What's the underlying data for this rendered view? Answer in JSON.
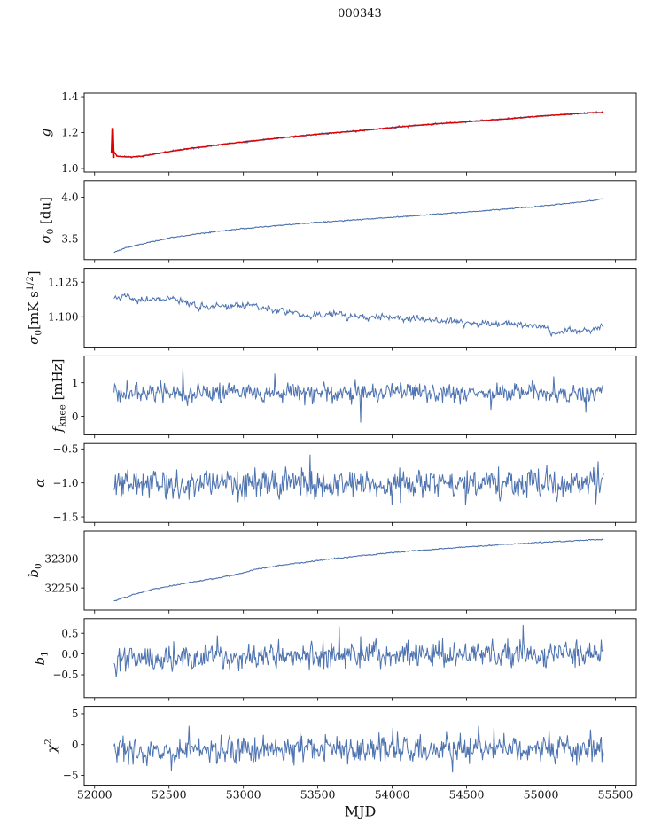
{
  "title": "000343",
  "chart_data": {
    "type": "line",
    "title": "000343",
    "xlabel": "MJD",
    "x": {
      "lim": [
        51930,
        55640
      ],
      "data_range": [
        52130,
        55420
      ],
      "points": 640,
      "ticks": [
        {
          "v": 52000,
          "label": "52000"
        },
        {
          "v": 52500,
          "label": "52500"
        },
        {
          "v": 53000,
          "label": "53000"
        },
        {
          "v": 53500,
          "label": "53500"
        },
        {
          "v": 54000,
          "label": "54000"
        },
        {
          "v": 54500,
          "label": "54500"
        },
        {
          "v": 55000,
          "label": "55000"
        },
        {
          "v": 55500,
          "label": "55500"
        }
      ]
    },
    "colors": {
      "line": "#4c72b0",
      "fit": "#dd0000",
      "axis": "#000000"
    },
    "panels": [
      {
        "id": "g",
        "ylabel_text": "g",
        "ylabel_segments": [
          [
            "g",
            "i"
          ]
        ],
        "ylim": [
          0.98,
          1.42
        ],
        "yticks": [
          {
            "v": 1.0,
            "label": "1.0"
          },
          {
            "v": 1.2,
            "label": "1.2"
          },
          {
            "v": 1.4,
            "label": "1.4"
          }
        ],
        "series": [
          {
            "name": "g",
            "color": "#4c72b0",
            "width": 1.1,
            "sigma": 0.003,
            "smooth": 0.2,
            "trend": [
              [
                52130,
                1.095
              ],
              [
                52150,
                1.068
              ],
              [
                52250,
                1.063
              ],
              [
                52350,
                1.072
              ],
              [
                52500,
                1.094
              ],
              [
                52650,
                1.113
              ],
              [
                52800,
                1.128
              ],
              [
                53000,
                1.148
              ],
              [
                53200,
                1.166
              ],
              [
                53400,
                1.183
              ],
              [
                53600,
                1.198
              ],
              [
                53800,
                1.212
              ],
              [
                54000,
                1.228
              ],
              [
                54200,
                1.242
              ],
              [
                54400,
                1.254
              ],
              [
                54600,
                1.266
              ],
              [
                54800,
                1.278
              ],
              [
                55000,
                1.292
              ],
              [
                55150,
                1.3
              ],
              [
                55300,
                1.308
              ],
              [
                55420,
                1.313
              ]
            ]
          },
          {
            "name": "g-fit",
            "color": "#dd0000",
            "width": 1.4,
            "sigma": 0.0012,
            "smooth": 0.3,
            "pre": [
              [
                52116,
                1.085
              ],
              [
                52121,
                1.225
              ],
              [
                52127,
                1.058
              ]
            ],
            "pre_width": 2.6,
            "trend": [
              [
                52130,
                1.095
              ],
              [
                52150,
                1.068
              ],
              [
                52250,
                1.063
              ],
              [
                52350,
                1.072
              ],
              [
                52500,
                1.094
              ],
              [
                52650,
                1.113
              ],
              [
                52800,
                1.128
              ],
              [
                53000,
                1.148
              ],
              [
                53200,
                1.166
              ],
              [
                53400,
                1.183
              ],
              [
                53600,
                1.198
              ],
              [
                53800,
                1.212
              ],
              [
                54000,
                1.228
              ],
              [
                54200,
                1.242
              ],
              [
                54400,
                1.254
              ],
              [
                54600,
                1.266
              ],
              [
                54800,
                1.278
              ],
              [
                55000,
                1.292
              ],
              [
                55150,
                1.3
              ],
              [
                55300,
                1.308
              ],
              [
                55420,
                1.313
              ]
            ]
          }
        ]
      },
      {
        "id": "sigma0-du",
        "ylabel_text": "σ0 [du]",
        "ylabel_segments": [
          [
            "σ",
            "i"
          ],
          [
            "0",
            "sub"
          ],
          [
            " [du]",
            "n"
          ]
        ],
        "ylim": [
          3.25,
          4.2
        ],
        "yticks": [
          {
            "v": 3.5,
            "label": "3.5"
          },
          {
            "v": 4.0,
            "label": "4.0"
          }
        ],
        "series": [
          {
            "name": "sigma0-du",
            "color": "#4c72b0",
            "width": 1.1,
            "sigma": 0.004,
            "smooth": 0.2,
            "trend": [
              [
                52130,
                3.34
              ],
              [
                52200,
                3.385
              ],
              [
                52300,
                3.43
              ],
              [
                52400,
                3.47
              ],
              [
                52500,
                3.51
              ],
              [
                52650,
                3.55
              ],
              [
                52800,
                3.585
              ],
              [
                53000,
                3.625
              ],
              [
                53200,
                3.655
              ],
              [
                53400,
                3.685
              ],
              [
                53600,
                3.71
              ],
              [
                53800,
                3.735
              ],
              [
                54000,
                3.76
              ],
              [
                54200,
                3.785
              ],
              [
                54400,
                3.81
              ],
              [
                54600,
                3.835
              ],
              [
                54800,
                3.865
              ],
              [
                55000,
                3.895
              ],
              [
                55150,
                3.92
              ],
              [
                55300,
                3.95
              ],
              [
                55420,
                3.985
              ]
            ]
          }
        ]
      },
      {
        "id": "sigma0-mks",
        "ylabel_text": "σ0[mK s1/2]",
        "ylabel_segments": [
          [
            "σ",
            "i"
          ],
          [
            "0",
            "sub"
          ],
          [
            "[mK s",
            "n"
          ],
          [
            "1/2",
            "sup"
          ],
          [
            "]",
            "n"
          ]
        ],
        "ylim": [
          1.078,
          1.135
        ],
        "yticks": [
          {
            "v": 1.1,
            "label": "1.100"
          },
          {
            "v": 1.125,
            "label": "1.125"
          }
        ],
        "series": [
          {
            "name": "sigma0-mks",
            "color": "#4c72b0",
            "width": 1.0,
            "sigma": 0.0022,
            "smooth": 0.45,
            "trend": [
              [
                52130,
                1.115
              ],
              [
                52250,
                1.1135
              ],
              [
                52400,
                1.1128
              ],
              [
                52550,
                1.1122
              ],
              [
                52700,
                1.1085
              ],
              [
                52850,
                1.1072
              ],
              [
                53000,
                1.1082
              ],
              [
                53150,
                1.107
              ],
              [
                53300,
                1.1035
              ],
              [
                53450,
                1.1013
              ],
              [
                53600,
                1.1008
              ],
              [
                53750,
                1.101
              ],
              [
                53900,
                1.0998
              ],
              [
                54050,
                1.0992
              ],
              [
                54200,
                1.098
              ],
              [
                54350,
                1.0972
              ],
              [
                54500,
                1.096
              ],
              [
                54650,
                1.095
              ],
              [
                54800,
                1.0942
              ],
              [
                54950,
                1.0935
              ],
              [
                55100,
                1.0892
              ],
              [
                55250,
                1.0888
              ],
              [
                55420,
                1.0938
              ]
            ]
          }
        ]
      },
      {
        "id": "fknee",
        "ylabel_text": "fknee [mHz]",
        "ylabel_segments": [
          [
            "f",
            "i"
          ],
          [
            "knee",
            "sub"
          ],
          [
            " [mHz]",
            "n"
          ]
        ],
        "ylim": [
          -0.55,
          1.8
        ],
        "yticks": [
          {
            "v": 0,
            "label": "0"
          },
          {
            "v": 1,
            "label": "1"
          }
        ],
        "series": [
          {
            "name": "fknee",
            "color": "#4c72b0",
            "width": 1.0,
            "sigma": 0.16,
            "smooth": 0.1,
            "spike_prob": 0.02,
            "spike_amp": 0.55,
            "trend": [
              [
                52130,
                0.72
              ],
              [
                53000,
                0.7
              ],
              [
                54000,
                0.7
              ],
              [
                55420,
                0.7
              ]
            ]
          }
        ]
      },
      {
        "id": "alpha",
        "ylabel_text": "α",
        "ylabel_segments": [
          [
            "α",
            "i"
          ]
        ],
        "ylim": [
          -1.58,
          -0.42
        ],
        "yticks": [
          {
            "v": -0.5,
            "label": "−0.5"
          },
          {
            "v": -1.0,
            "label": "−1.0"
          },
          {
            "v": -1.5,
            "label": "−1.5"
          }
        ],
        "series": [
          {
            "name": "alpha",
            "color": "#4c72b0",
            "width": 1.0,
            "sigma": 0.12,
            "smooth": 0.1,
            "spike_prob": 0.015,
            "spike_amp": 0.3,
            "trend": [
              [
                52130,
                -1.02
              ],
              [
                55420,
                -1.0
              ]
            ]
          }
        ]
      },
      {
        "id": "b0",
        "ylabel_text": "b0",
        "ylabel_segments": [
          [
            "b",
            "i"
          ],
          [
            "0",
            "sub"
          ]
        ],
        "ylim": [
          32212,
          32348
        ],
        "yticks": [
          {
            "v": 32250,
            "label": "32250"
          },
          {
            "v": 32300,
            "label": "32300"
          }
        ],
        "series": [
          {
            "name": "b0",
            "color": "#4c72b0",
            "width": 1.1,
            "sigma": 0.7,
            "smooth": 0.3,
            "trend": [
              [
                52130,
                32227
              ],
              [
                52250,
                32238
              ],
              [
                52400,
                32248
              ],
              [
                52550,
                32255
              ],
              [
                52700,
                32262
              ],
              [
                52850,
                32268
              ],
              [
                53000,
                32276
              ],
              [
                53100,
                32283
              ],
              [
                53250,
                32289
              ],
              [
                53400,
                32294
              ],
              [
                53550,
                32299
              ],
              [
                53700,
                32303
              ],
              [
                53850,
                32307
              ],
              [
                54000,
                32311
              ],
              [
                54150,
                32314
              ],
              [
                54300,
                32317
              ],
              [
                54450,
                32320
              ],
              [
                54600,
                32322
              ],
              [
                54750,
                32325
              ],
              [
                54900,
                32327
              ],
              [
                55050,
                32329
              ],
              [
                55200,
                32331
              ],
              [
                55420,
                32334
              ]
            ]
          }
        ]
      },
      {
        "id": "b1",
        "ylabel_text": "b1",
        "ylabel_segments": [
          [
            "b",
            "i"
          ],
          [
            "1",
            "sub"
          ]
        ],
        "ylim": [
          -1.05,
          0.85
        ],
        "yticks": [
          {
            "v": -0.5,
            "label": "−0.5"
          },
          {
            "v": 0.0,
            "label": "0.0"
          },
          {
            "v": 0.5,
            "label": "0.5"
          }
        ],
        "series": [
          {
            "name": "b1",
            "color": "#4c72b0",
            "width": 1.0,
            "sigma": 0.17,
            "smooth": 0.1,
            "spike_prob": 0.015,
            "spike_amp": 0.45,
            "trend": [
              [
                52130,
                -0.13
              ],
              [
                52700,
                -0.1
              ],
              [
                53200,
                -0.06
              ],
              [
                53800,
                -0.03
              ],
              [
                54400,
                0.0
              ],
              [
                55000,
                0.02
              ],
              [
                55420,
                0.03
              ]
            ]
          }
        ]
      },
      {
        "id": "chi2",
        "ylabel_text": "χ2",
        "ylabel_segments": [
          [
            "χ",
            "i"
          ],
          [
            "2",
            "sup"
          ]
        ],
        "ylim": [
          -6.6,
          6.2
        ],
        "yticks": [
          {
            "v": -5,
            "label": "−5"
          },
          {
            "v": 0,
            "label": "0"
          },
          {
            "v": 5,
            "label": "5"
          }
        ],
        "series": [
          {
            "name": "chi2",
            "color": "#4c72b0",
            "width": 1.0,
            "sigma": 1.15,
            "smooth": 0.1,
            "spike_prob": 0.015,
            "spike_amp": 2.5,
            "trend": [
              [
                52130,
                -1.2
              ],
              [
                53000,
                -0.9
              ],
              [
                54000,
                -0.8
              ],
              [
                55420,
                -0.6
              ]
            ]
          }
        ]
      }
    ]
  }
}
